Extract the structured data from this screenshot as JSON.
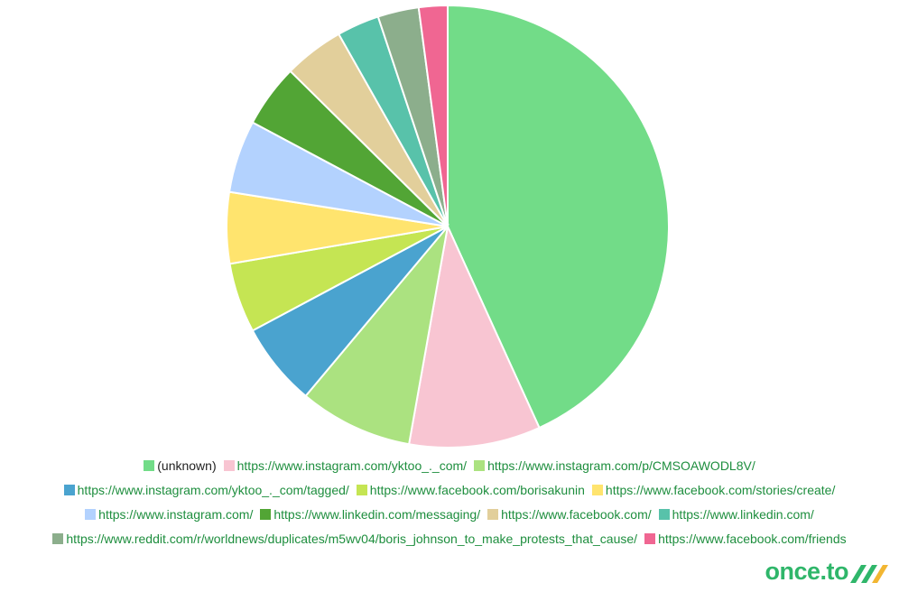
{
  "chart_data": {
    "type": "pie",
    "categories": [
      "(unknown)",
      "https://www.instagram.com/yktoo_._com/",
      "https://www.instagram.com/p/CMSOAWODL8V/",
      "https://www.instagram.com/yktoo_._com/tagged/",
      "https://www.facebook.com/borisakunin",
      "https://www.facebook.com/stories/create/",
      "https://www.instagram.com/",
      "https://www.linkedin.com/messaging/",
      "https://www.facebook.com/",
      "https://www.linkedin.com/",
      "https://www.reddit.com/r/worldnews/duplicates/m5wv04/boris_johnson_to_make_protests_that_cause/",
      "https://www.facebook.com/friends"
    ],
    "values": [
      43.2,
      9.6,
      8.3,
      6.1,
      5.1,
      5.2,
      5.3,
      4.6,
      4.4,
      3.1,
      3.0,
      2.1
    ],
    "colors": [
      "#72dc88",
      "#f8c5d2",
      "#abe280",
      "#4aa3cf",
      "#c5e553",
      "#ffe46e",
      "#b3d2fe",
      "#52a535",
      "#e2cf9b",
      "#58c2aa",
      "#8cae8c",
      "#f06692"
    ]
  },
  "brand": "once.to"
}
